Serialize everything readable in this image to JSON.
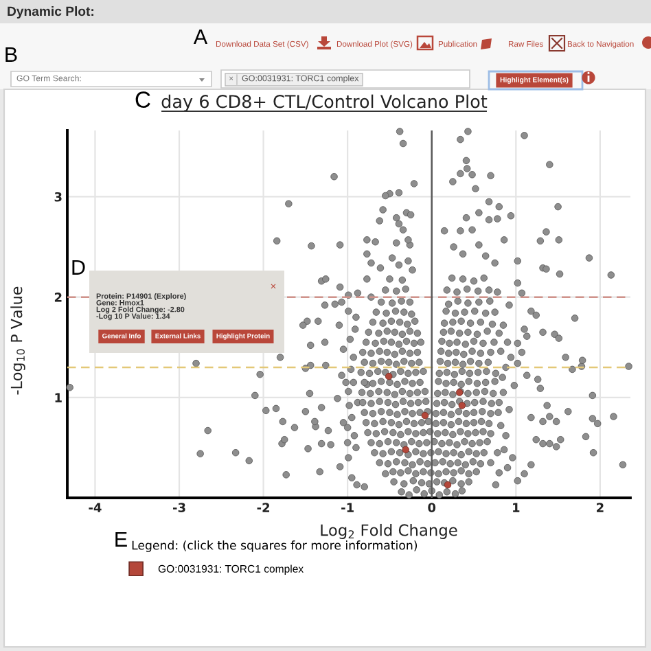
{
  "chart_data": {
    "type": "scatter",
    "title": "day 6 CD8+ CTL/Control Volcano Plot",
    "xlabel": "Log$_{2}$ Fold Change",
    "ylabel": "-Log$_{10}$ P Value",
    "legend_title": "Legend: (click the squares for more information)",
    "xlim": [
      -4.33,
      2.36
    ],
    "xticks": [
      -4,
      -3,
      -2,
      -1,
      0,
      1,
      2
    ],
    "ylim": [
      0,
      3.66
    ],
    "yticks": [
      1,
      2,
      3
    ],
    "grid": true,
    "legend": "bottom",
    "marker": "circle",
    "ref_lines": [
      {
        "axis": "y",
        "value": 2,
        "color": "#d0928a",
        "line_style": "dashed"
      },
      {
        "axis": "y",
        "value": 1.3,
        "color": "#e3c877",
        "line_style": "dashed"
      },
      {
        "axis": "x",
        "value": 0,
        "color": "#5a5a5a",
        "line_style": "solid"
      }
    ],
    "series": [
      {
        "color": "#8e8e8e",
        "x": [
          -0.38,
          -0.34,
          0.34,
          0.43,
          1.1,
          -1.16,
          1.4,
          -0.21,
          0.41,
          0.42,
          0.34,
          0.48,
          0.7,
          0.25,
          0.52,
          -0.5,
          -0.55,
          -0.39,
          0.68,
          -0.58,
          -0.3,
          -0.25,
          -0.42,
          1.5,
          0.8,
          0.94,
          0.56,
          0.41,
          0.68,
          0.78,
          -0.62,
          -0.39,
          -0.34,
          0.15,
          0.34,
          0.48,
          1.36,
          1.29,
          1.51,
          -1.43,
          -1.09,
          -0.77,
          -0.67,
          -0.42,
          -0.26,
          -0.28,
          -0.77,
          -0.72,
          -0.61,
          -0.47,
          -0.39,
          -0.28,
          -0.23,
          0.26,
          0.37,
          0.56,
          0.64,
          0.75,
          0.86,
          1.02,
          1.87,
          1.32,
          1.52,
          2.13,
          -1.31,
          -1.26,
          -1.09,
          -1.7,
          -1.84,
          -1.27,
          -1.48,
          -1.35,
          -1.53,
          -1.44,
          -1.27,
          -1.8,
          -2.8,
          -2.04,
          -1.44,
          -2.1,
          -4.3,
          -1.97,
          -1.85,
          -1.77,
          -2.66,
          -2.75,
          -2.33,
          -2.17,
          -1.73,
          -1.78,
          -1.75,
          -1.63,
          -1.47,
          -1.33,
          -1.38,
          -1.23,
          -1.31,
          -1.2,
          -0.89,
          -0.8,
          -1.09,
          -0.99,
          -1.5,
          -1.31,
          -1.12,
          -0.99,
          -1.07,
          -1.5,
          -1.15,
          -0.99,
          -0.88,
          -0.77,
          -0.72,
          -0.91,
          -0.93,
          -0.77,
          -1.39,
          -1.26,
          -1.45,
          -1.07,
          -0.99,
          1.18,
          1.4,
          1.48,
          1.53,
          1.83,
          1.92,
          2.27,
          2.16,
          1.91,
          1.97,
          1.24,
          1.32,
          1.02,
          1.1,
          0.96,
          0.76,
          1.4,
          1.18,
          1.32,
          1.62,
          2.34,
          1.91,
          1.78,
          1.79,
          1.67,
          1.59,
          1.7,
          1.46,
          1.51,
          1.32,
          1.26,
          1.29,
          1.37,
          1.48,
          1.36,
          1.18,
          1.24,
          1.02,
          1.07,
          1.1,
          1.13,
          1.02,
          1.07,
          0.94,
          1.02,
          1.13,
          0.88,
          0.92,
          0.85,
          0.98,
          0.9,
          0.86,
          -0.92,
          -0.95,
          -0.88,
          -0.9,
          -0.36,
          -0.27,
          -0.18,
          -0.09,
          0.0,
          0.09,
          0.18,
          0.28,
          0.36,
          -0.45,
          -0.33,
          -0.22,
          -0.12,
          -0.03,
          0.06,
          0.15,
          0.25,
          0.35,
          0.44,
          -0.55,
          -0.46,
          -0.37,
          -0.28,
          -0.19,
          -0.1,
          -0.01,
          0.08,
          0.17,
          0.26,
          0.35,
          0.44,
          0.53,
          -0.62,
          -0.52,
          -0.42,
          -0.32,
          -0.23,
          -0.14,
          -0.05,
          0.04,
          0.13,
          0.22,
          0.31,
          0.4,
          0.49,
          0.58,
          -0.68,
          -0.58,
          -0.48,
          -0.38,
          -0.28,
          -0.19,
          -0.1,
          -0.01,
          0.08,
          0.17,
          0.26,
          0.35,
          0.44,
          0.53,
          0.62,
          -0.72,
          -0.62,
          -0.52,
          -0.42,
          -0.33,
          -0.24,
          -0.15,
          -0.06,
          0.03,
          0.12,
          0.21,
          0.3,
          0.39,
          0.48,
          0.57,
          0.66,
          -0.76,
          -0.66,
          -0.56,
          -0.46,
          -0.37,
          -0.28,
          -0.19,
          -0.1,
          -0.02,
          0.07,
          0.16,
          0.25,
          0.34,
          0.43,
          0.52,
          0.61,
          0.7,
          -0.78,
          -0.68,
          -0.58,
          -0.48,
          -0.39,
          -0.3,
          -0.21,
          -0.12,
          -0.04,
          0.05,
          0.14,
          0.23,
          0.32,
          0.41,
          0.5,
          0.59,
          0.68,
          -0.8,
          -0.7,
          -0.6,
          -0.5,
          -0.41,
          -0.32,
          -0.23,
          -0.14,
          -0.05,
          0.05,
          0.14,
          0.23,
          0.32,
          0.41,
          0.5,
          0.6,
          0.7,
          0.79,
          -0.82,
          -0.72,
          -0.62,
          -0.52,
          -0.43,
          -0.34,
          -0.25,
          -0.16,
          -0.07,
          0.06,
          0.15,
          0.24,
          0.33,
          0.42,
          0.51,
          0.61,
          0.71,
          -0.83,
          -0.73,
          -0.63,
          -0.53,
          -0.44,
          -0.35,
          -0.26,
          -0.17,
          -0.08,
          0.07,
          0.16,
          0.25,
          0.34,
          0.43,
          0.53,
          0.63,
          0.73,
          -0.8,
          -0.7,
          -0.6,
          -0.5,
          -0.41,
          -0.32,
          -0.23,
          -0.14,
          0.08,
          0.17,
          0.26,
          0.35,
          0.44,
          0.54,
          0.64,
          0.75,
          -0.84,
          -0.74,
          -0.64,
          -0.55,
          -0.46,
          -0.37,
          -0.28,
          -0.19,
          -0.1,
          0.09,
          0.18,
          0.27,
          0.36,
          0.45,
          0.55,
          0.65,
          0.76,
          -0.8,
          -0.7,
          -0.6,
          -0.51,
          -0.42,
          -0.33,
          -0.24,
          -0.15,
          0.1,
          0.19,
          0.28,
          0.37,
          0.46,
          0.56,
          0.67,
          -0.82,
          -0.72,
          -0.62,
          -0.53,
          -0.44,
          -0.35,
          -0.26,
          -0.17,
          0.11,
          0.2,
          0.29,
          0.38,
          0.48,
          0.58,
          0.7,
          0.82,
          -0.78,
          -0.67,
          -0.57,
          -0.48,
          -0.39,
          -0.3,
          -0.21,
          -0.13,
          0.12,
          0.21,
          0.3,
          0.4,
          0.5,
          0.61,
          0.74,
          -0.75,
          -0.63,
          -0.53,
          -0.44,
          -0.35,
          -0.26,
          -0.17,
          0.14,
          0.23,
          0.33,
          0.43,
          0.54,
          0.66,
          0.8,
          -0.7,
          -0.58,
          -0.48,
          -0.38,
          -0.29,
          -0.2,
          0.15,
          0.25,
          0.35,
          0.46,
          0.58,
          0.72,
          -0.66,
          -0.54,
          -0.43,
          -0.33,
          -0.24,
          0.17,
          0.28,
          0.39,
          0.51,
          0.64,
          -0.6,
          -0.47,
          -0.36,
          -0.26,
          0.2,
          0.31,
          0.43,
          0.56,
          0.69,
          -0.55,
          -0.42,
          -0.31,
          0.18,
          0.3,
          0.42,
          0.55,
          0.68,
          -0.5,
          -0.35,
          0.24,
          0.37,
          0.5,
          0.62,
          -0.95,
          -1.0,
          -1.05,
          -0.98,
          -1.02,
          -0.96,
          -1.05,
          -0.97,
          -1.1,
          -0.9,
          -1.0,
          -0.93,
          0.8,
          0.78,
          0.82,
          0.8,
          0.84,
          0.88,
          0.9,
          0.85,
          0.92,
          0.75,
          0.78,
          0.7
        ],
        "values": [
          3.65,
          3.53,
          3.57,
          3.65,
          3.61,
          3.2,
          3.32,
          3.13,
          3.36,
          3.28,
          3.23,
          3.22,
          3.21,
          3.15,
          3.08,
          3.03,
          3.01,
          3.04,
          2.95,
          2.87,
          2.84,
          2.82,
          2.79,
          2.9,
          2.9,
          2.81,
          2.84,
          2.79,
          2.77,
          2.78,
          2.76,
          2.73,
          2.67,
          2.66,
          2.66,
          2.67,
          2.65,
          2.56,
          2.57,
          2.51,
          2.52,
          2.57,
          2.55,
          2.54,
          2.52,
          2.57,
          2.43,
          2.34,
          2.29,
          2.39,
          2.32,
          2.36,
          2.27,
          2.5,
          2.43,
          2.52,
          2.41,
          2.34,
          2.57,
          2.36,
          2.39,
          2.29,
          2.23,
          2.22,
          2.16,
          2.18,
          2.1,
          2.93,
          2.56,
          1.92,
          1.76,
          1.76,
          1.72,
          1.52,
          1.55,
          1.4,
          1.34,
          1.23,
          1.32,
          1.02,
          1.1,
          0.87,
          0.89,
          0.76,
          0.67,
          0.44,
          0.45,
          0.37,
          0.23,
          0.54,
          0.58,
          0.7,
          0.49,
          0.26,
          0.71,
          0.67,
          0.54,
          0.53,
          0.13,
          0.11,
          0.31,
          0.4,
          0.86,
          0.9,
          0.99,
          1.06,
          1.22,
          1.29,
          1.93,
          1.86,
          2.04,
          2.18,
          2.0,
          1.68,
          1.4,
          1.13,
          0.76,
          1.32,
          1.04,
          1.95,
          2.02,
          0.33,
          0.54,
          0.51,
          0.58,
          0.61,
          0.45,
          0.33,
          0.81,
          0.79,
          0.74,
          0.58,
          0.54,
          0.17,
          0.24,
          0.4,
          0.13,
          0.81,
          0.8,
          0.76,
          0.86,
          1.31,
          1.02,
          1.31,
          1.37,
          1.28,
          1.4,
          1.79,
          1.63,
          1.59,
          1.65,
          1.18,
          1.09,
          0.92,
          0.76,
          2.28,
          1.86,
          1.82,
          2.14,
          2.04,
          1.68,
          1.61,
          1.54,
          1.45,
          1.4,
          1.34,
          1.22,
          0.62,
          0.88,
          1.05,
          1.12,
          0.3,
          0.48,
          0.62,
          0.8,
          0.95,
          0.5,
          0.06,
          0.03,
          0.08,
          0.04,
          0.07,
          0.03,
          0.06,
          0.04,
          0.07,
          0.16,
          0.14,
          0.17,
          0.15,
          0.14,
          0.16,
          0.15,
          0.17,
          0.14,
          0.16,
          0.24,
          0.26,
          0.25,
          0.27,
          0.24,
          0.26,
          0.25,
          0.24,
          0.26,
          0.25,
          0.27,
          0.24,
          0.26,
          0.35,
          0.34,
          0.36,
          0.35,
          0.33,
          0.36,
          0.34,
          0.35,
          0.36,
          0.34,
          0.35,
          0.33,
          0.36,
          0.34,
          0.45,
          0.44,
          0.46,
          0.45,
          0.43,
          0.46,
          0.44,
          0.45,
          0.46,
          0.44,
          0.45,
          0.43,
          0.46,
          0.44,
          0.45,
          0.55,
          0.54,
          0.56,
          0.55,
          0.53,
          0.56,
          0.54,
          0.55,
          0.56,
          0.54,
          0.55,
          0.53,
          0.56,
          0.54,
          0.55,
          0.56,
          0.65,
          0.64,
          0.66,
          0.65,
          0.63,
          0.66,
          0.64,
          0.65,
          0.66,
          0.64,
          0.65,
          0.63,
          0.66,
          0.64,
          0.65,
          0.66,
          0.64,
          0.75,
          0.74,
          0.76,
          0.75,
          0.73,
          0.76,
          0.74,
          0.75,
          0.76,
          0.74,
          0.75,
          0.73,
          0.76,
          0.74,
          0.75,
          0.76,
          0.74,
          0.85,
          0.84,
          0.86,
          0.85,
          0.83,
          0.86,
          0.84,
          0.85,
          0.86,
          0.84,
          0.85,
          0.83,
          0.86,
          0.84,
          0.85,
          0.86,
          0.84,
          0.85,
          0.95,
          0.94,
          0.96,
          0.95,
          0.93,
          0.96,
          0.94,
          0.95,
          0.96,
          0.94,
          0.95,
          0.93,
          0.96,
          0.94,
          0.95,
          0.96,
          0.94,
          1.05,
          1.04,
          1.06,
          1.05,
          1.03,
          1.06,
          1.04,
          1.05,
          1.06,
          1.04,
          1.05,
          1.03,
          1.06,
          1.04,
          1.05,
          1.06,
          1.04,
          1.15,
          1.14,
          1.16,
          1.15,
          1.13,
          1.16,
          1.14,
          1.15,
          1.16,
          1.14,
          1.15,
          1.13,
          1.16,
          1.14,
          1.15,
          1.16,
          1.25,
          1.24,
          1.26,
          1.25,
          1.23,
          1.26,
          1.24,
          1.25,
          1.26,
          1.24,
          1.25,
          1.23,
          1.26,
          1.24,
          1.25,
          1.26,
          1.24,
          1.35,
          1.34,
          1.36,
          1.35,
          1.33,
          1.36,
          1.34,
          1.35,
          1.36,
          1.34,
          1.35,
          1.33,
          1.36,
          1.34,
          1.35,
          1.45,
          1.44,
          1.46,
          1.45,
          1.43,
          1.46,
          1.44,
          1.45,
          1.46,
          1.44,
          1.45,
          1.43,
          1.46,
          1.44,
          1.45,
          1.46,
          1.55,
          1.54,
          1.56,
          1.55,
          1.53,
          1.56,
          1.54,
          1.55,
          1.56,
          1.54,
          1.55,
          1.53,
          1.56,
          1.54,
          1.55,
          1.65,
          1.64,
          1.66,
          1.65,
          1.63,
          1.66,
          1.64,
          1.65,
          1.66,
          1.64,
          1.65,
          1.63,
          1.66,
          1.64,
          1.75,
          1.74,
          1.76,
          1.75,
          1.73,
          1.76,
          1.74,
          1.75,
          1.76,
          1.74,
          1.75,
          1.73,
          1.85,
          1.84,
          1.86,
          1.85,
          1.83,
          1.86,
          1.84,
          1.85,
          1.86,
          1.84,
          1.95,
          1.94,
          1.96,
          1.95,
          1.93,
          1.96,
          1.94,
          1.95,
          1.96,
          2.07,
          2.06,
          2.08,
          2.07,
          2.05,
          2.08,
          2.06,
          2.07,
          2.18,
          2.17,
          2.19,
          2.18,
          2.16,
          2.19,
          0.2,
          0.55,
          0.75,
          0.92,
          1.15,
          1.28,
          1.48,
          1.58,
          1.72,
          1.8,
          0.7,
          1.15,
          0.25,
          0.45,
          0.72,
          0.95,
          1.2,
          1.3,
          1.55,
          1.72,
          1.92,
          1.85,
          2.05,
          0.35
        ]
      },
      {
        "name": "GO:0031931: TORC1 complex",
        "color": "#b4473a",
        "x": [
          -0.51,
          -0.08,
          0.33,
          0.36,
          -0.31,
          0.19
        ],
        "values": [
          1.21,
          0.82,
          1.05,
          0.92,
          0.48,
          0.13
        ]
      }
    ],
    "annotations": [
      "Dynamic Plot:",
      "A",
      "Download Data Set (CSV)",
      "Download Plot (SVG)",
      "Publication",
      "Raw Files",
      "Back to Navigation",
      "B",
      "GO Term Search:",
      "×",
      "GO:0031931: TORC1 complex",
      "Highlight Element(s)",
      "C",
      "D",
      "Protein: P14901 (Explore)\nGene: Hmox1\nLog 2 Fold Change: -2.80\n-Log 10 P Value: 1.34",
      "×",
      "General Info",
      "External Links",
      "Highlight Protein",
      "E"
    ]
  }
}
